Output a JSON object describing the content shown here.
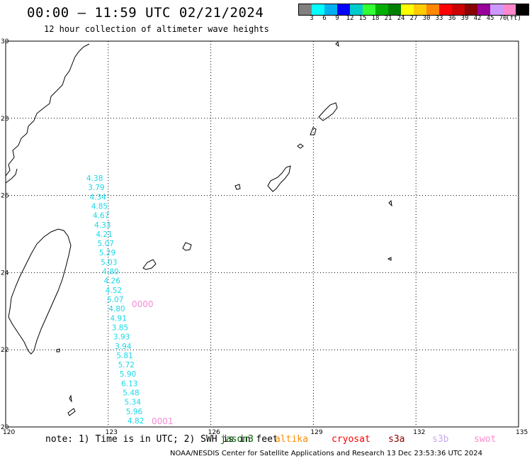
{
  "title": "00:00 – 11:59 UTC 02/21/2024",
  "subtitle": "12 hour collection of altimeter wave heights",
  "legend": {
    "colors": [
      "#808080",
      "#00ffff",
      "#00b0f0",
      "#0000ff",
      "#00cccc",
      "#33ff33",
      "#00b000",
      "#008000",
      "#ffff00",
      "#ffcc00",
      "#ff8800",
      "#ff0000",
      "#cc0000",
      "#880000",
      "#990099",
      "#cc99ff",
      "#ff88cc",
      "#000000"
    ],
    "labels": [
      "3",
      "6",
      "9",
      "12",
      "15",
      "18",
      "21",
      "24",
      "27",
      "30",
      "33",
      "36",
      "39",
      "42",
      "45",
      "70"
    ],
    "unit": "(ft)"
  },
  "map": {
    "lon_ticks": [
      "120",
      "123",
      "126",
      "129",
      "132",
      "135"
    ],
    "lat_ticks": [
      "30",
      "28",
      "26",
      "24",
      "22",
      "20"
    ],
    "lon_range": [
      120,
      135
    ],
    "lat_range": [
      20,
      30
    ],
    "grid": "dotted",
    "wave_heights": [
      "4.38",
      "3.79",
      "4.34",
      "4.85",
      "4.67",
      "4.33",
      "4.21",
      "5.07",
      "5.29",
      "5.03",
      "4.80",
      "4.26",
      "4.52",
      "5.07",
      "4.80",
      "4.91",
      "3.85",
      "3.93",
      "3.94",
      "5.81",
      "5.72",
      "5.90",
      "6.13",
      "5.48",
      "5.34",
      "5.96",
      "4.82"
    ],
    "cells": [
      "0000",
      "0001"
    ],
    "wave_color": "#19d8e8",
    "cell_color": "#f58ad6"
  },
  "note": "note: 1) Time is in UTC; 2) SWH is in feet",
  "satellites": [
    {
      "name": "jason3",
      "color": "#006400"
    },
    {
      "name": "altika",
      "color": "#ff8c00"
    },
    {
      "name": "cryosat",
      "color": "#ff0000"
    },
    {
      "name": "s3a",
      "color": "#8b0000"
    },
    {
      "name": "s3b",
      "color": "#c8a8f0"
    },
    {
      "name": "swot",
      "color": "#ff88cc"
    }
  ],
  "footer": "NOAA/NESDIS Center for Satellite Applications and Research    13 Dec 23:53:36 UTC 2024"
}
